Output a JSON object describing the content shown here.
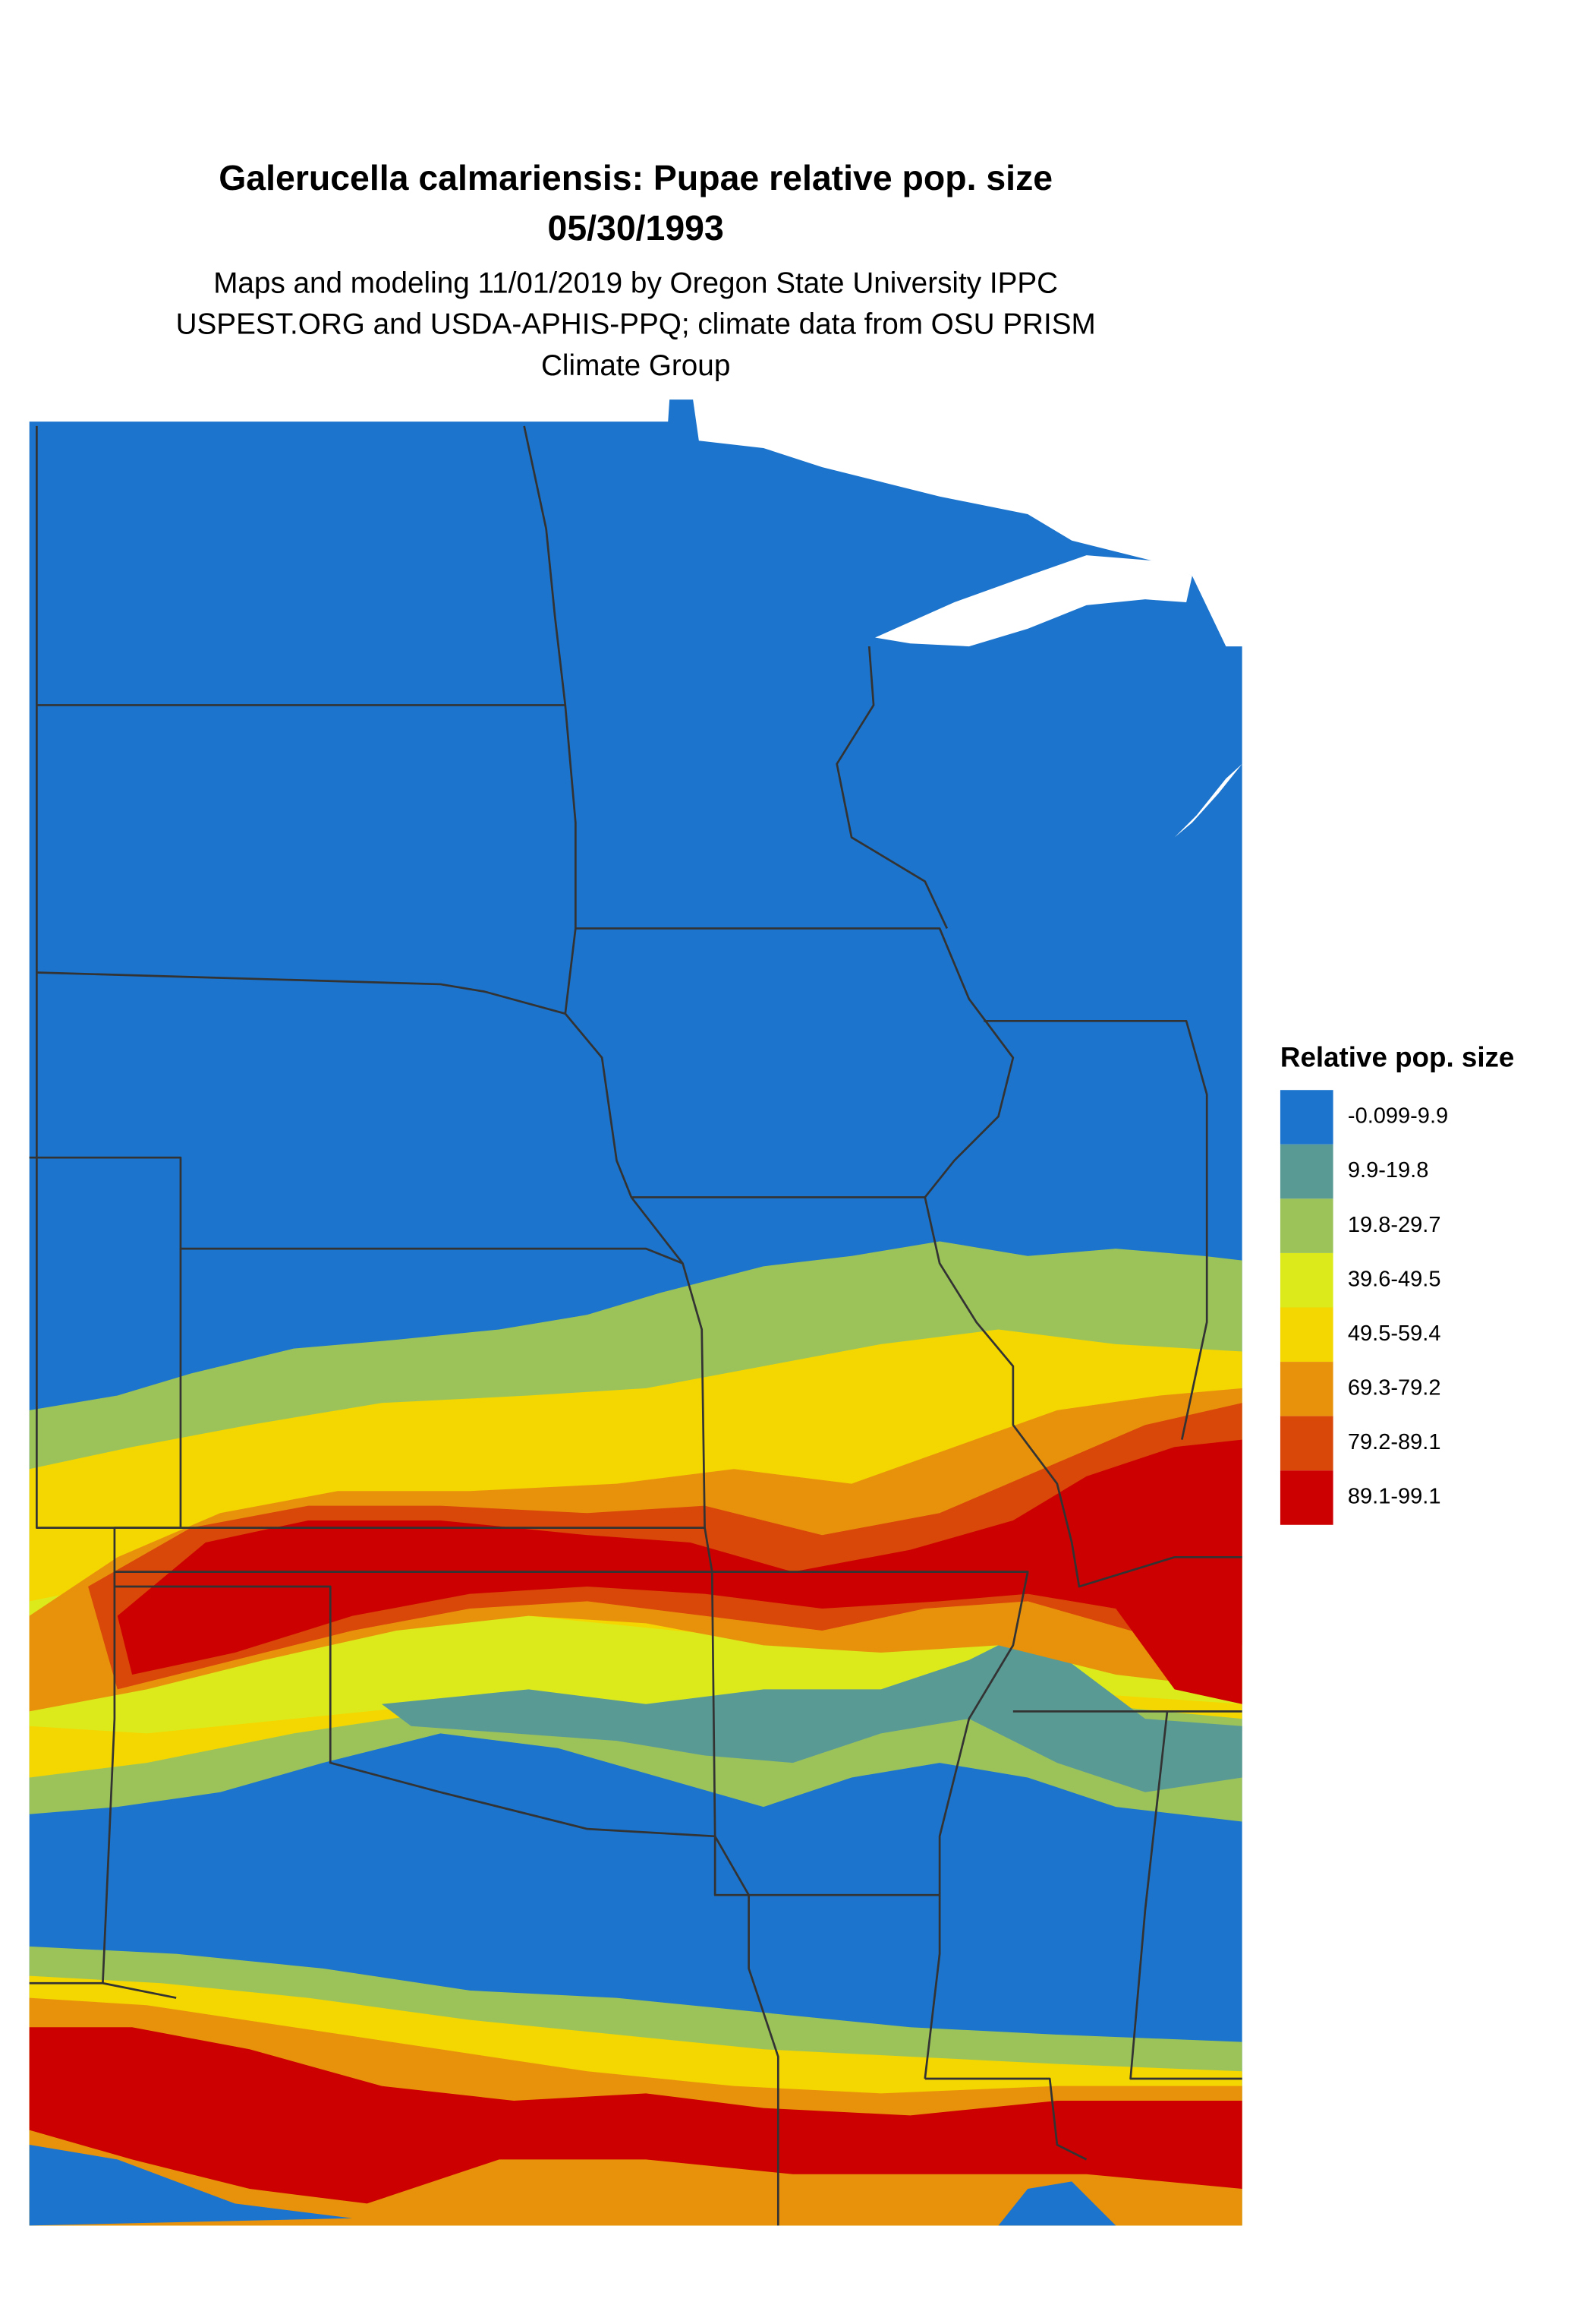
{
  "header": {
    "title": "Galerucella calmariensis: Pupae relative pop. size",
    "date": "05/30/1993",
    "subtitle": [
      "Maps and modeling 11/01/2019 by Oregon State University IPPC",
      "USPEST.ORG and USDA-APHIS-PPQ; climate data from OSU PRISM",
      "Climate Group"
    ]
  },
  "legend": {
    "title": "Relative pop. size",
    "items": [
      {
        "label": "-0.099-9.9",
        "color": "#1c74cc"
      },
      {
        "label": "9.9-19.8",
        "color": "#5a9a95"
      },
      {
        "label": "19.8-29.7",
        "color": "#9cc35a"
      },
      {
        "label": "39.6-49.5",
        "color": "#dcea1c"
      },
      {
        "label": "49.5-59.4",
        "color": "#f4d700"
      },
      {
        "label": "69.3-79.2",
        "color": "#e8920c"
      },
      {
        "label": "79.2-89.1",
        "color": "#d94709"
      },
      {
        "label": "89.1-99.1",
        "color": "#cc0000"
      }
    ]
  }
}
